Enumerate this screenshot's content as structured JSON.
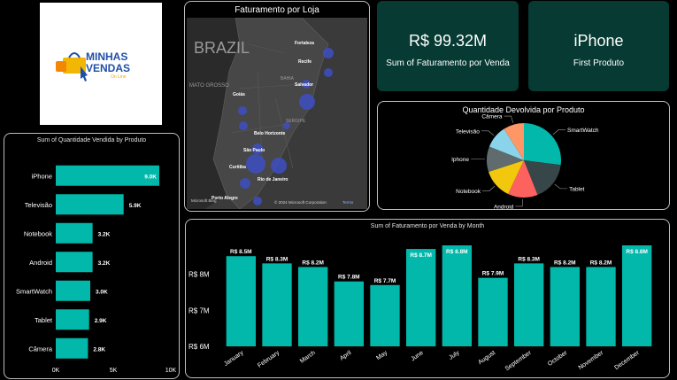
{
  "logo": {
    "line1": "MINHAS",
    "line2": "VENDAS",
    "tagline": "On Line"
  },
  "map_panel": {
    "title": "Faturamento por Loja",
    "country_label": "BRAZIL",
    "region_labels": [
      "MATO GROSSO",
      "Goiás",
      "SERGIPE",
      "BAHIA"
    ],
    "cities": [
      "Fortaleza",
      "Recife",
      "Salvador",
      "Goiás",
      "Belo Horizonte",
      "São Paulo",
      "Curitiba",
      "Rio de Janeiro",
      "Porto Alegre"
    ],
    "attribution": "© 2024 Microsoft Corporation",
    "terms": "Terms",
    "bing": "Microsoft Bing"
  },
  "kpi_revenue": {
    "value": "R$ 99.32M",
    "label": "Sum of Faturamento por Venda"
  },
  "kpi_product": {
    "value": "iPhone",
    "label": "First Produto"
  },
  "pie_panel": {
    "title": "Quantidade Devolvida por Produto"
  },
  "hbar_panel": {
    "title": "Sum of Quantidade Vendida by Produto"
  },
  "column_panel": {
    "title": "Sum of Faturamento por Venda by Month"
  },
  "colors": {
    "teal": "#01b8aa",
    "card_bg": "#063a33",
    "pie_gray": "#374649",
    "pie_red": "#fd625e",
    "pie_yellow": "#f2c80f",
    "pie_slate": "#5f6b6d",
    "pie_blue": "#8ad4eb",
    "pie_orange": "#fe9666",
    "bubble": "#3d4fc2"
  },
  "chart_data": [
    {
      "type": "bar",
      "orientation": "horizontal",
      "title": "Sum of Quantidade Vendida by Produto",
      "categories": [
        "iPhone",
        "Televisão",
        "Notebook",
        "Android",
        "SmartWatch",
        "Tablet",
        "Câmera"
      ],
      "values": [
        9000,
        5900,
        3200,
        3200,
        3000,
        2900,
        2800
      ],
      "data_labels": [
        "9.0K",
        "5.9K",
        "3.2K",
        "3.2K",
        "3.0K",
        "2.9K",
        "2.8K"
      ],
      "xlim": [
        0,
        10000
      ],
      "x_ticks": [
        "0K",
        "5K",
        "10K"
      ]
    },
    {
      "type": "pie",
      "title": "Quantidade Devolvida por Produto",
      "categories": [
        "SmartWatch",
        "Tablet",
        "Android",
        "Notebook",
        "Iphone",
        "Televisão",
        "Câmera"
      ],
      "values": [
        27,
        17,
        13,
        13,
        11,
        10,
        9
      ]
    },
    {
      "type": "bar",
      "orientation": "vertical",
      "title": "Sum of Faturamento por Venda by Month",
      "categories": [
        "January",
        "February",
        "March",
        "April",
        "May",
        "June",
        "July",
        "August",
        "September",
        "October",
        "November",
        "December"
      ],
      "values": [
        8.5,
        8.3,
        8.2,
        7.8,
        7.7,
        8.7,
        8.8,
        7.9,
        8.3,
        8.2,
        8.2,
        8.8
      ],
      "data_labels": [
        "R$ 8.5M",
        "R$ 8.3M",
        "R$ 8.2M",
        "R$ 7.8M",
        "R$ 7.7M",
        "R$ 8.7M",
        "R$ 8.8M",
        "R$ 7.9M",
        "R$ 8.3M",
        "R$ 8.2M",
        "R$ 8.2M",
        "R$ 8.8M"
      ],
      "ylim": [
        6,
        8.8
      ],
      "y_ticks": [
        "R$ 6M",
        "R$ 7M",
        "R$ 8M"
      ],
      "y_tick_values": [
        6,
        7,
        8
      ]
    }
  ]
}
